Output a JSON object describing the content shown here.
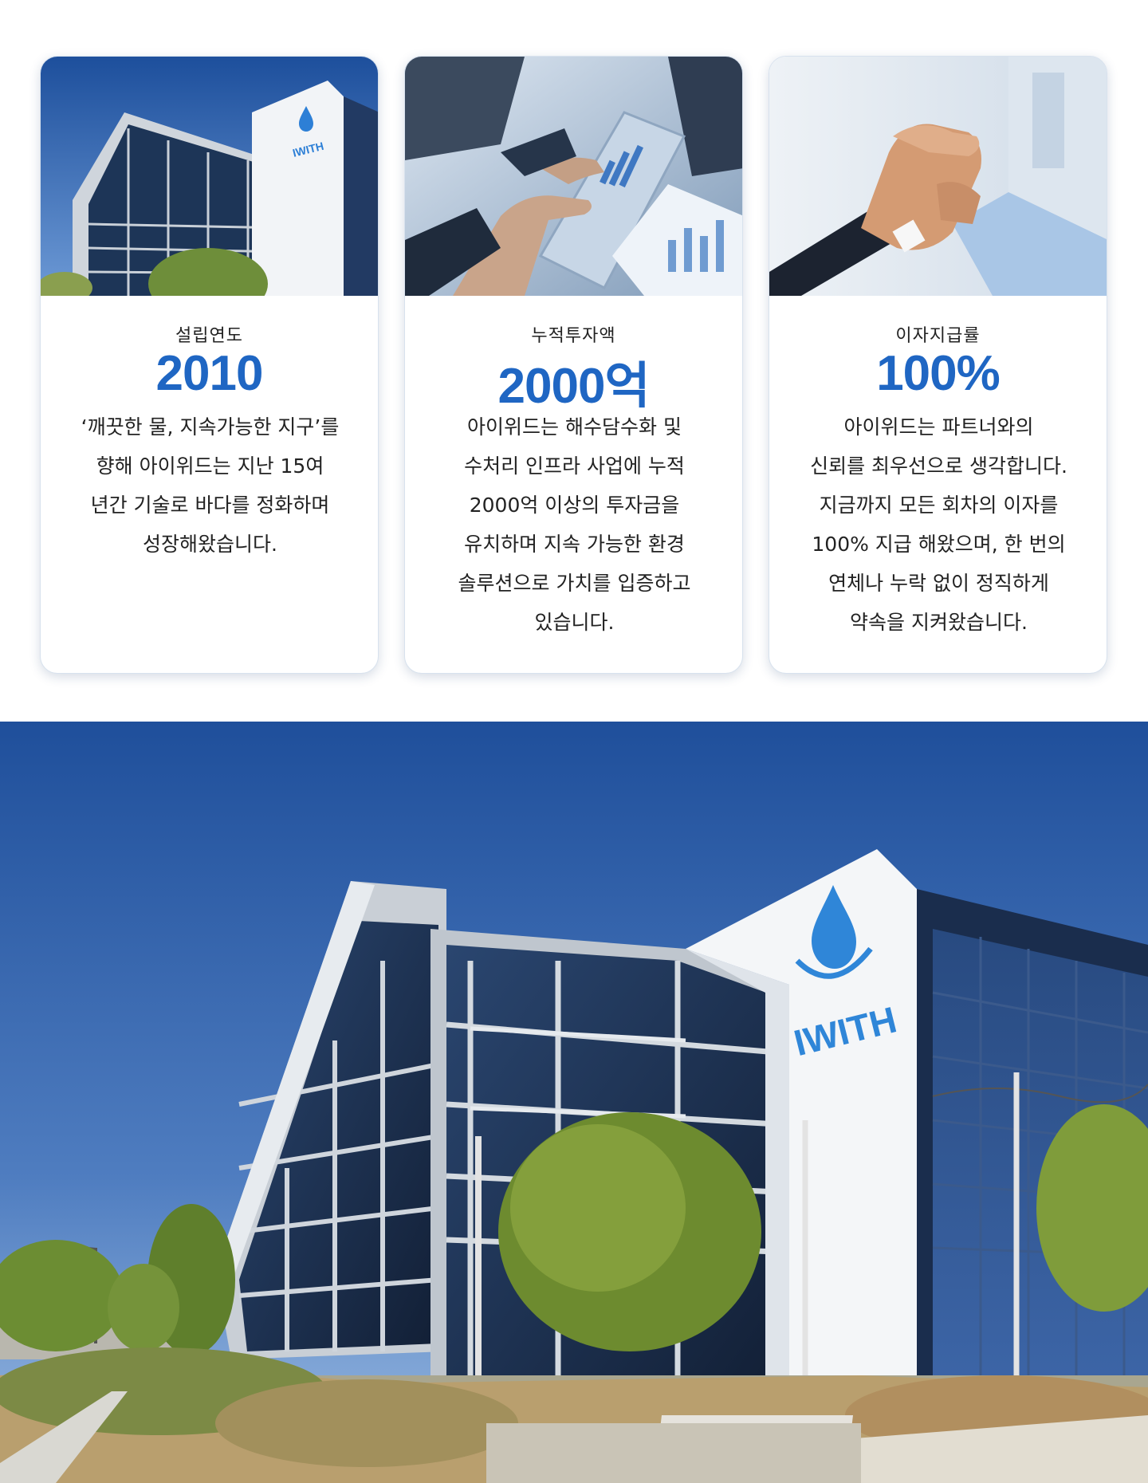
{
  "stats": [
    {
      "label": "설립연도",
      "value": "2010",
      "description": "‘깨끗한 물, 지속가능한 지구’를\n향해 아이위드는 지난 15여\n년간 기술로 바다를 정화하며\n성장해왔습니다.",
      "photo": "office-building-photo"
    },
    {
      "label": "누적투자액",
      "value": "2000억",
      "description": "아이위드는 해수담수화 및\n수처리 인프라 사업에 누적\n2000억 이상의 투자금을\n유치하며 지속 가능한 환경\n솔루션으로 가치를 입증하고\n있습니다.",
      "photo": "business-tablet-photo"
    },
    {
      "label": "이자지급률",
      "value": "100%",
      "description": "아이위드는 파트너와의\n신뢰를 최우선으로 생각합니다.\n지금까지 모든 회차의 이자를\n100% 지급 해왔으며, 한 번의\n연체나 누락 없이 정직하게\n약속을 지켜왔습니다.",
      "photo": "handshake-photo"
    }
  ],
  "brand": {
    "logo_text": "IWITH",
    "logo_icon": "water-drop-icon"
  },
  "colors": {
    "accent": "#1f66c3",
    "card_border": "#d8e2ee",
    "sky": "#2f5fa8",
    "glass": "#1c3459"
  }
}
